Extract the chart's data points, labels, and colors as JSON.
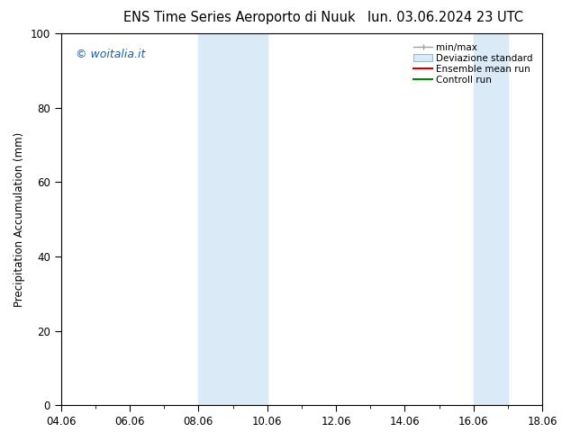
{
  "title_left": "ENS Time Series Aeroporto di Nuuk",
  "title_right": "lun. 03.06.2024 23 UTC",
  "ylabel": "Precipitation Accumulation (mm)",
  "watermark": "© woitalia.it",
  "ylim": [
    0,
    100
  ],
  "yticks": [
    0,
    20,
    40,
    60,
    80,
    100
  ],
  "xtick_labels": [
    "04.06",
    "06.06",
    "08.06",
    "10.06",
    "12.06",
    "14.06",
    "16.06",
    "18.06"
  ],
  "xtick_positions": [
    0,
    2,
    4,
    6,
    8,
    10,
    12,
    14
  ],
  "x_min": 0,
  "x_max": 14,
  "shaded_bands": [
    {
      "x_start": 4.0,
      "x_end": 6.0
    },
    {
      "x_start": 12.0,
      "x_end": 13.0
    }
  ],
  "shade_color": "#daeaf6",
  "legend_labels": [
    "min/max",
    "Deviazione standard",
    "Ensemble mean run",
    "Controll run"
  ],
  "legend_colors_line": [
    "#a0a0a0",
    "#b8ccd8",
    "#cc0000",
    "#008800"
  ],
  "watermark_color": "#1a5fa8",
  "title_fontsize": 10.5,
  "tick_fontsize": 8.5,
  "ylabel_fontsize": 8.5,
  "background_color": "#ffffff"
}
